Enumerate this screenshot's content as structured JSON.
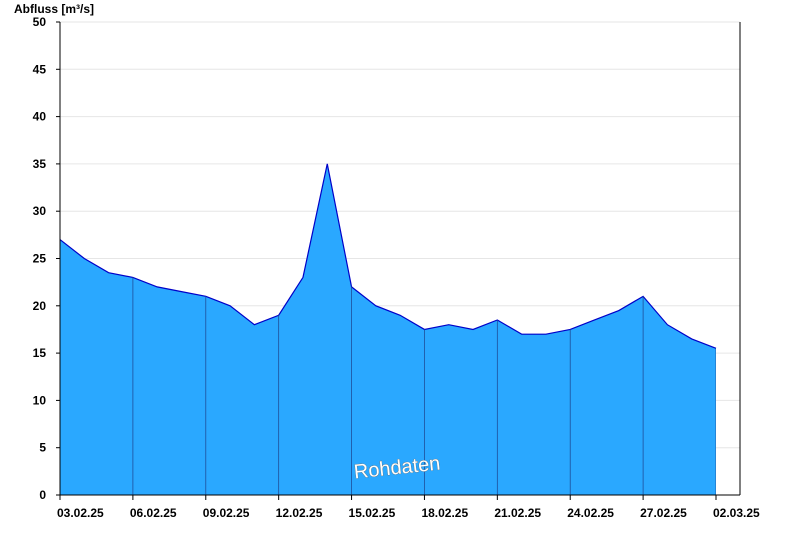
{
  "chart_data": {
    "type": "area",
    "ylabel": "Abfluss [m³/s]",
    "annotation": "Rohdaten",
    "x": [
      "03.02.25",
      "04.02.25",
      "05.02.25",
      "06.02.25",
      "07.02.25",
      "08.02.25",
      "09.02.25",
      "10.02.25",
      "11.02.25",
      "12.02.25",
      "13.02.25",
      "14.02.25",
      "15.02.25",
      "16.02.25",
      "17.02.25",
      "18.02.25",
      "19.02.25",
      "20.02.25",
      "21.02.25",
      "22.02.25",
      "23.02.25",
      "24.02.25",
      "25.02.25",
      "26.02.25",
      "27.02.25",
      "28.02.25",
      "01.03.25",
      "02.03.25"
    ],
    "series": [
      {
        "color": "#2aa8ff",
        "line_color": "#0000c8",
        "values": [
          27,
          25,
          23.5,
          23,
          22,
          21.5,
          21,
          20,
          18,
          19,
          23,
          35,
          22,
          20,
          19,
          17.5,
          18,
          17.5,
          18.5,
          17,
          17,
          17.5,
          18.5,
          19.5,
          21,
          18,
          16.5,
          15.5
        ]
      }
    ],
    "xlim": [
      "03.02.25",
      "02.03.25"
    ],
    "xticks": [
      "03.02.25",
      "06.02.25",
      "09.02.25",
      "12.02.25",
      "15.02.25",
      "18.02.25",
      "21.02.25",
      "24.02.25",
      "27.02.25",
      "02.03.25"
    ],
    "ylim": [
      0,
      50
    ],
    "yticks": [
      0,
      5,
      10,
      15,
      20,
      25,
      30,
      35,
      40,
      45,
      50
    ],
    "grid": true
  }
}
